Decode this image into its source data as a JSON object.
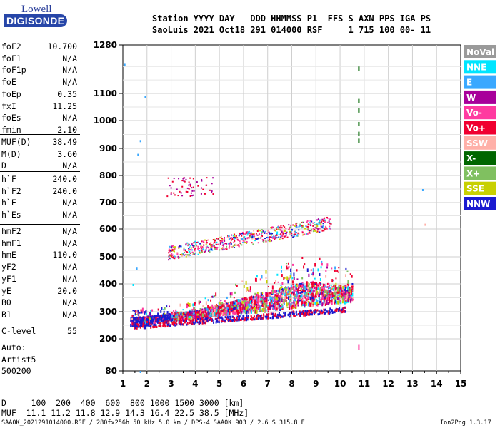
{
  "logo": {
    "line1": "Lowell",
    "line2": "DIGISONDE"
  },
  "header": {
    "line1": "Station YYYY DAY   DDD HHMMSS P1  FFS S AXN PPS IGA PS",
    "line2": "SaoLuis 2021 Oct18 291 014000 RSF     1 715 100 00- 11"
  },
  "params_group1": [
    {
      "name": "foF2",
      "value": "10.700"
    },
    {
      "name": "foF1",
      "value": "N/A"
    },
    {
      "name": "foF1p",
      "value": "N/A"
    },
    {
      "name": "foE",
      "value": "N/A"
    },
    {
      "name": "foEp",
      "value": "0.35"
    },
    {
      "name": "fxI",
      "value": "11.25"
    },
    {
      "name": "foEs",
      "value": "N/A"
    },
    {
      "name": "fmin",
      "value": "2.10"
    }
  ],
  "params_group2": [
    {
      "name": "MUF(D)",
      "value": "38.49"
    },
    {
      "name": "M(D)",
      "value": "3.60"
    },
    {
      "name": "D",
      "value": "N/A"
    }
  ],
  "params_group3": [
    {
      "name": "h`F",
      "value": "240.0"
    },
    {
      "name": "h`F2",
      "value": "240.0"
    },
    {
      "name": "h`E",
      "value": "N/A"
    },
    {
      "name": "h`Es",
      "value": "N/A"
    }
  ],
  "params_group4": [
    {
      "name": "hmF2",
      "value": "N/A"
    },
    {
      "name": "hmF1",
      "value": "N/A"
    },
    {
      "name": "hmE",
      "value": "110.0"
    },
    {
      "name": "yF2",
      "value": "N/A"
    },
    {
      "name": "yF1",
      "value": "N/A"
    },
    {
      "name": "yE",
      "value": "20.0"
    },
    {
      "name": "B0",
      "value": "N/A"
    },
    {
      "name": "B1",
      "value": "N/A"
    }
  ],
  "clevel": {
    "name": "C-level",
    "value": "55"
  },
  "auto": [
    "Auto:",
    "Artist5",
    "500200"
  ],
  "legend": [
    {
      "label": "NoVal",
      "color": "#9a9a9a"
    },
    {
      "label": "NNE",
      "color": "#00e5ff"
    },
    {
      "label": "E",
      "color": "#3aa8ff"
    },
    {
      "label": "W",
      "color": "#a8009a"
    },
    {
      "label": "Vo-",
      "color": "#ff3aa0"
    },
    {
      "label": "Vo+",
      "color": "#f00030"
    },
    {
      "label": "SSW",
      "color": "#ffb0a8"
    },
    {
      "label": "X-",
      "color": "#006600"
    },
    {
      "label": "X+",
      "color": "#80c060"
    },
    {
      "label": "SSE",
      "color": "#c8d000"
    },
    {
      "label": "NNW",
      "color": "#1a1ad0"
    }
  ],
  "footer": {
    "dist_line": "D     100  200  400  600  800 1000 1500 3000 [km]",
    "muf_line": "MUF  11.1 11.2 11.8 12.9 14.3 16.4 22.5 38.5 [MHz]",
    "meta_line": "SAA0K_2021291014000.RSF / 280fx256h 50 kHz 5.0 km / DPS-4 SAA0K 903 / 2.6 S 315.8 E",
    "version": "Ion2Png 1.3.17"
  },
  "chart_data": {
    "type": "scatter",
    "title": "",
    "xlabel": "",
    "ylabel": "",
    "xlim": [
      1,
      15
    ],
    "ylim": [
      80,
      1280
    ],
    "x_ticks": [
      "1",
      "2",
      "3",
      "4",
      "5",
      "6",
      "7",
      "8",
      "9",
      "10",
      "11",
      "12",
      "13",
      "14",
      "15"
    ],
    "y_ticks": [
      {
        "value": 80,
        "label": "80"
      },
      {
        "value": 200,
        "label": "200"
      },
      {
        "value": 300,
        "label": "300"
      },
      {
        "value": 400,
        "label": "400"
      },
      {
        "value": 500,
        "label": "500"
      },
      {
        "value": 600,
        "label": "600"
      },
      {
        "value": 700,
        "label": "700"
      },
      {
        "value": 800,
        "label": "800"
      },
      {
        "value": 900,
        "label": "900"
      },
      {
        "value": 1000,
        "label": "1000"
      },
      {
        "value": 1100,
        "label": "1100"
      },
      {
        "value": 1280,
        "label": "1280"
      }
    ],
    "y_scale": "nonuniform (upper range compressed)",
    "grid": true,
    "legend_placement": "right",
    "traces": [
      {
        "name": "F-layer trace (main)",
        "x_range": [
          1.3,
          10.5
        ],
        "y_range": [
          230,
          440
        ]
      },
      {
        "name": "F-layer second hop",
        "x_range": [
          1.8,
          9.5
        ],
        "y_range": [
          480,
          690
        ]
      },
      {
        "name": "high echoes",
        "x_range": [
          2.8,
          4.8
        ],
        "y_range": [
          720,
          790
        ]
      }
    ]
  }
}
